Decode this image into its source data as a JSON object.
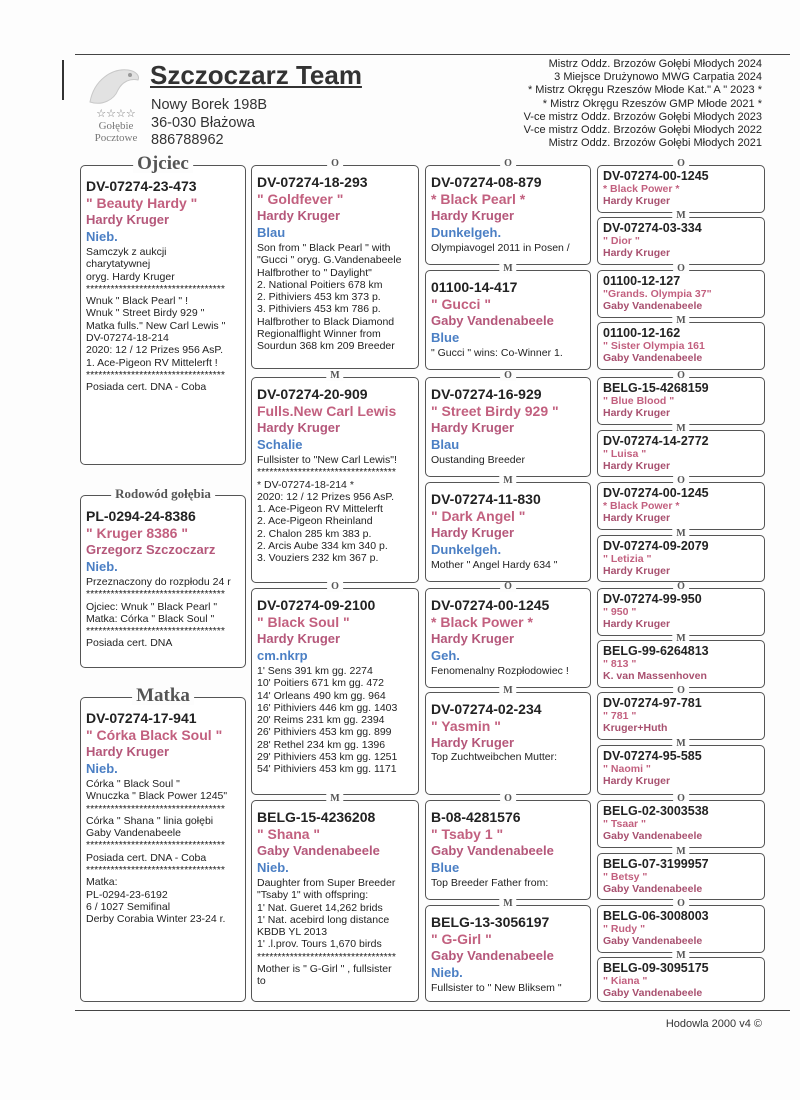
{
  "header": {
    "logo_stars": "☆☆☆☆",
    "logo_lines": [
      "Gołębie",
      "Pocztowe"
    ],
    "title": "Szczoczarz Team",
    "address": [
      "Nowy Borek 198B",
      "36-030 Błażowa",
      "886788962"
    ],
    "achievements": [
      "Mistrz Oddz. Brzozów Gołębi Młodych 2024",
      "3 Miejsce Drużynowo MWG Carpatia 2024",
      "* Mistrz Okręgu Rzeszów  Młode Kat.\" A \" 2023 *",
      "* Mistrz Okręgu Rzeszów GMP Młode 2021 *",
      "V-ce mistrz Oddz. Brzozów Gołębi Młodych 2023",
      "V-ce mistrz Oddz. Brzozów Gołębi Młodych 2022",
      "Mistrz Oddz. Brzozów Gołębi Młodych 2021"
    ]
  },
  "pedigree": {
    "columns": [
      {
        "boxes": [
          {
            "label": "Ojciec",
            "ring": "DV-07274-23-473",
            "name": "\" Beauty Hardy \"",
            "breeder": "Hardy Kruger",
            "color": "Nieb.",
            "notes": [
              "Samczyk z aukcji",
              "charytatywnej",
              "oryg. Hardy Kruger",
              "**********************************",
              "Wnuk \" Black Pearl \" !",
              "Wnuk \" Street Birdy 929 \"",
              "Matka  fulls.\" New Carl Lewis \"",
              "DV-07274-18-214",
              "2020: 12 / 12 Prizes 956 AsP.",
              "1. Ace-Pigeon RV Mittelerft !",
              "**********************************",
              "Posiada cert. DNA - Coba"
            ]
          },
          {
            "label": "Rodowód gołębia",
            "ring": "PL-0294-24-8386",
            "name": "\" Kruger 8386 \"",
            "breeder": "Grzegorz Szczoczarz",
            "color": "Nieb.",
            "notes": [
              "Przeznaczony do rozpłodu 24 r",
              "**********************************",
              "Ojciec: Wnuk \" Black Pearl \"",
              "Matka: Córka \" Black Soul \"",
              "**********************************",
              "Posiada cert. DNA"
            ]
          },
          {
            "label": "Matka",
            "ring": "DV-07274-17-941",
            "name": "\" Córka Black Soul \"",
            "breeder": "Hardy Kruger",
            "color": "Nieb.",
            "notes": [
              "Córka \" Black Soul \"",
              "Wnuczka \" Black Power 1245\"",
              "**********************************",
              "Córka \" Shana \" linia gołębi",
              "Gaby Vandenabeele",
              "**********************************",
              "Posiada cert. DNA - Coba",
              "**********************************",
              "Matka:",
              " PL-0294-23-6192",
              "6 / 1027 Semifinal",
              "Derby Corabia Winter 23-24 r."
            ]
          }
        ]
      },
      {
        "boxes": [
          {
            "label": "O",
            "ring": "DV-07274-18-293",
            "name": "\" Goldfever \"",
            "breeder": "Hardy Kruger",
            "color": "Blau",
            "notes": [
              "Son from \" Black Pearl \" with",
              "\"Gucci \" oryg. G.Vandenabeele",
              "Halfbrother to \" Daylight\"",
              "2. National Poitiers 678 km",
              "2. Pithiviers 453 km 373 p.",
              "3. Pithiviers 453 km 786 p.",
              "Halfbrother to Black Diamond",
              "Regionalflight Winner from",
              "Sourdun 368 km 209 Breeder"
            ]
          },
          {
            "label": "M",
            "ring": "DV-07274-20-909",
            "name": "Fulls.New Carl Lewis",
            "breeder": "Hardy Kruger",
            "color": "Schalie",
            "notes": [
              "Fullsister to \"New Carl Lewis\"!",
              "**********************************",
              "* DV-07274-18-214 *",
              "2020: 12 / 12 Prizes 956 AsP.",
              "1. Ace-Pigeon RV Mittelerft",
              "2. Ace-Pigeon Rheinland",
              "2. Chalon 285 km 383 p.",
              "2. Arcis Aube 334 km 340 p.",
              "3. Vouziers 232 km 367 p."
            ]
          },
          {
            "label": "O",
            "ring": "DV-07274-09-2100",
            "name": "\" Black Soul \"",
            "breeder": "Hardy Kruger",
            "color": "cm.nkrp",
            "notes": [
              "1' Sens 391 km gg. 2274",
              "10' Poitiers 671 km gg. 472",
              "14' Orleans 490 km gg. 964",
              "16' Pithiviers 446 km gg. 1403",
              "20' Reims 231 km gg. 2394",
              "26' Pithiviers 453 km gg. 899",
              "28' Rethel 234 km gg. 1396",
              "29' Pithiviers 453 km gg. 1251",
              "54' Pithiviers 453 km gg. 1171"
            ]
          },
          {
            "label": "M",
            "ring": "BELG-15-4236208",
            "name": "\" Shana \"",
            "breeder": "Gaby Vandenabeele",
            "color": "Nieb.",
            "notes": [
              "Daughter from Super Breeder",
              "\"Tsaby 1\" with offspring:",
              "1' Nat. Gueret 14,262 brids",
              "1' Nat. acebird long distance",
              "KBDB YL 2013",
              "1' .l.prov. Tours 1,670 birds",
              "**********************************",
              "Mother is \" G-Girl \" , fullsister",
              "to"
            ]
          }
        ]
      },
      {
        "boxes": [
          {
            "label": "O",
            "ring": "DV-07274-08-879",
            "name": "* Black Pearl *",
            "breeder": "Hardy Kruger",
            "color": "Dunkelgeh.",
            "notes": [
              "Olympiavogel 2011 in Posen /"
            ]
          },
          {
            "label": "M",
            "ring": "01100-14-417",
            "name": "\" Gucci \"",
            "breeder": "Gaby Vandenabeele",
            "color": "Blue",
            "notes": [
              "\" Gucci \" wins: Co-Winner 1."
            ]
          },
          {
            "label": "O",
            "ring": "DV-07274-16-929",
            "name": "\" Street Birdy 929 \"",
            "breeder": "Hardy Kruger",
            "color": "Blau",
            "notes": [
              "Oustanding Breeder"
            ]
          },
          {
            "label": "M",
            "ring": "DV-07274-11-830",
            "name": "\" Dark Angel \"",
            "breeder": "Hardy Kruger",
            "color": "Dunkelgeh.",
            "notes": [
              "Mother \" Angel Hardy 634 \""
            ]
          },
          {
            "label": "O",
            "ring": "DV-07274-00-1245",
            "name": "* Black Power *",
            "breeder": "Hardy Kruger",
            "color": "Geh.",
            "notes": [
              "Fenomenalny Rozpłodowiec !"
            ]
          },
          {
            "label": "M",
            "ring": "DV-07274-02-234",
            "name": "\" Yasmin \"",
            "breeder": "Hardy Kruger",
            "notes": [
              "Top Zuchtweibchen Mutter:"
            ]
          },
          {
            "label": "O",
            "ring": "B-08-4281576",
            "name": "\" Tsaby 1 \"",
            "breeder": "Gaby Vandenabeele",
            "color": "Blue",
            "notes": [
              "Top Breeder Father from:"
            ]
          },
          {
            "label": "M",
            "ring": "BELG-13-3056197",
            "name": "\" G-Girl \"",
            "breeder": "Gaby Vandenabeele",
            "color": "Nieb.",
            "notes": [
              "Fullsister to \" New Bliksem \""
            ]
          }
        ]
      },
      {
        "boxes": [
          {
            "label": "O",
            "ring": "DV-07274-00-1245",
            "name": "* Black Power *",
            "breeder": "Hardy Kruger"
          },
          {
            "label": "M",
            "ring": "DV-07274-03-334",
            "name": "\" Dior \"",
            "breeder": "Hardy Kruger"
          },
          {
            "label": "O",
            "ring": "01100-12-127",
            "name": "\"Grands. Olympia 37\"",
            "breeder": "Gaby Vandenabeele"
          },
          {
            "label": "M",
            "ring": "01100-12-162",
            "name": "\" Sister Olympia 161",
            "breeder": "Gaby Vandenabeele"
          },
          {
            "label": "O",
            "ring": "BELG-15-4268159",
            "name": "\" Blue Blood \"",
            "breeder": "Hardy Kruger"
          },
          {
            "label": "M",
            "ring": "DV-07274-14-2772",
            "name": "\" Luisa \"",
            "breeder": "Hardy Kruger"
          },
          {
            "label": "O",
            "ring": "DV-07274-00-1245",
            "name": "* Black Power *",
            "breeder": "Hardy Kruger"
          },
          {
            "label": "M",
            "ring": "DV-07274-09-2079",
            "name": "\" Letizia \"",
            "breeder": "Hardy Kruger"
          },
          {
            "label": "O",
            "ring": "DV-07274-99-950",
            "name": "\" 950 \"",
            "breeder": "Hardy Kruger"
          },
          {
            "label": "M",
            "ring": "BELG-99-6264813",
            "name": "\" 813 \"",
            "breeder": "K. van Massenhoven"
          },
          {
            "label": "O",
            "ring": "DV-07274-97-781",
            "name": "\" 781 \"",
            "breeder": "Kruger+Huth"
          },
          {
            "label": "M",
            "ring": "DV-07274-95-585",
            "name": "\" Naomi \"",
            "breeder": "Hardy Kruger"
          },
          {
            "label": "O",
            "ring": "BELG-02-3003538",
            "name": "\" Tsaar \"",
            "breeder": "Gaby Vandenabeele"
          },
          {
            "label": "M",
            "ring": "BELG-07-3199957",
            "name": "\" Betsy \"",
            "breeder": "Gaby Vandenabeele"
          },
          {
            "label": "O",
            "ring": "BELG-06-3008003",
            "name": "\" Rudy \"",
            "breeder": "Gaby Vandenabeele"
          },
          {
            "label": "M",
            "ring": "BELG-09-3095175",
            "name": "\" Kiana \"",
            "breeder": "Gaby Vandenabeele"
          }
        ]
      }
    ]
  },
  "footer": {
    "text": "Hodowla 2000 v4 ©"
  }
}
